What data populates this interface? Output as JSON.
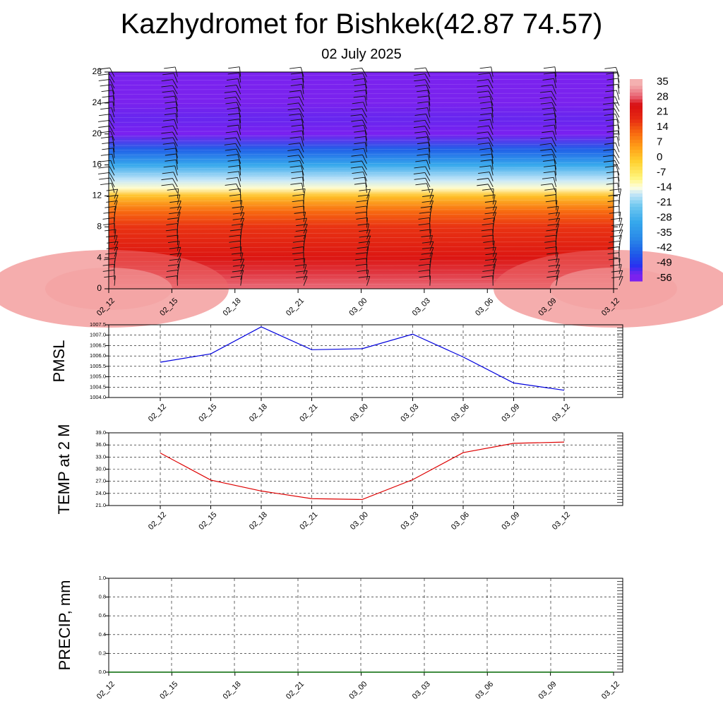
{
  "title": "Kazhydromet for Bishkek(42.87 74.57)",
  "subtitle": "02 July 2025",
  "colors": {
    "pmsl_line": "#0000dd",
    "temp_line": "#dd0000",
    "precip_line": "#006600",
    "grid": "#000000"
  },
  "chart_data": [
    {
      "type": "heatmap",
      "x_labels": [
        "02_12",
        "02_15",
        "02_18",
        "02_21",
        "03_00",
        "03_03",
        "03_06",
        "03_09",
        "03_12"
      ],
      "y_ticks": [
        0,
        4,
        8,
        12,
        16,
        20,
        24,
        28
      ],
      "ylim": [
        0,
        28
      ],
      "colorbar_labels": [
        "35",
        "28",
        "21",
        "14",
        "7",
        "0",
        "-7",
        "-14",
        "-21",
        "-28",
        "-35",
        "-42",
        "-49",
        "-56"
      ],
      "colorbar_range": [
        -60,
        40
      ],
      "temperature_profile": [
        {
          "height": 0,
          "value": 33
        },
        {
          "height": 2,
          "value": 30
        },
        {
          "height": 4,
          "value": 26
        },
        {
          "height": 8,
          "value": 20
        },
        {
          "height": 10,
          "value": 14
        },
        {
          "height": 12,
          "value": 2
        },
        {
          "height": 13,
          "value": -12
        },
        {
          "height": 14,
          "value": -16
        },
        {
          "height": 16,
          "value": -30
        },
        {
          "height": 18,
          "value": -45
        },
        {
          "height": 20,
          "value": -60
        },
        {
          "height": 22,
          "value": -55
        },
        {
          "height": 24,
          "value": -56
        },
        {
          "height": 28,
          "value": -57
        }
      ]
    },
    {
      "type": "line",
      "ylabel": "PMSL",
      "ylim": [
        1004.0,
        1007.5
      ],
      "y_ticks": [
        "1004.0",
        "1004.5",
        "1005.0",
        "1005.5",
        "1006.0",
        "1006.5",
        "1007.0",
        "1007.5"
      ],
      "x_labels": [
        "02_12",
        "02_15",
        "02_18",
        "02_21",
        "03_00",
        "03_03",
        "03_06",
        "03_09",
        "03_12"
      ],
      "series": [
        {
          "values": [
            1005.7,
            1006.1,
            1007.4,
            1006.3,
            1006.35,
            1007.05,
            1005.95,
            1004.7,
            1004.35
          ]
        }
      ]
    },
    {
      "type": "line",
      "ylabel": "TEMP at 2 M",
      "ylim": [
        21.0,
        39.0
      ],
      "y_ticks": [
        "21.0",
        "24.0",
        "27.0",
        "30.0",
        "33.0",
        "36.0",
        "39.0"
      ],
      "x_labels": [
        "02_12",
        "02_15",
        "02_18",
        "02_21",
        "03_00",
        "03_03",
        "03_06",
        "03_09",
        "03_12"
      ],
      "series": [
        {
          "values": [
            34.0,
            27.3,
            24.6,
            22.7,
            22.5,
            27.4,
            34.1,
            36.4,
            36.7
          ]
        }
      ]
    },
    {
      "type": "line",
      "ylabel": "PRECIP, mm",
      "ylim": [
        0.0,
        1.0
      ],
      "y_ticks": [
        "0.0",
        "0.2",
        "0.4",
        "0.6",
        "0.8",
        "1.0"
      ],
      "x_labels": [
        "02_12",
        "02_15",
        "02_18",
        "02_21",
        "03_00",
        "03_03",
        "03_06",
        "03_09",
        "03_12"
      ],
      "series": [
        {
          "values": [
            0,
            0,
            0,
            0,
            0,
            0,
            0,
            0,
            0
          ]
        }
      ]
    }
  ]
}
